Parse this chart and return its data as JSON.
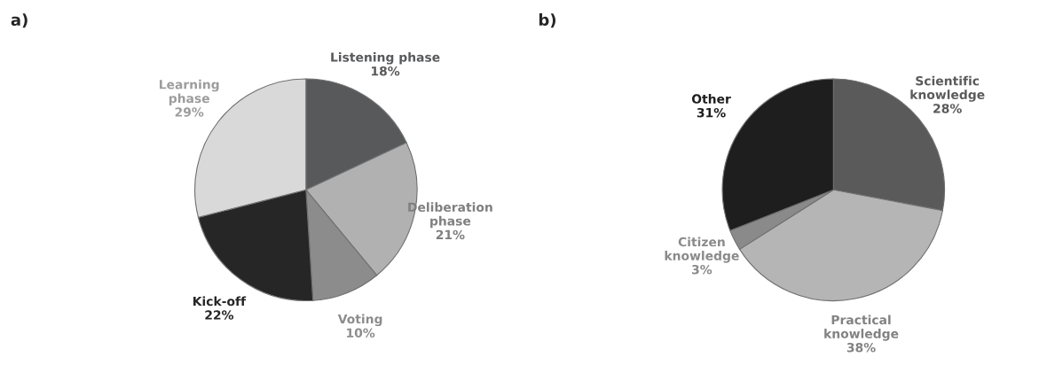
{
  "chart_data": [
    {
      "type": "pie",
      "title": "a)",
      "categories": [
        "Listening phase",
        "Deliberation\nphase",
        "Voting",
        "Kick-off",
        "Learning\nphase"
      ],
      "values": [
        18,
        21,
        10,
        22,
        29
      ],
      "value_labels": [
        "18%",
        "21%",
        "10%",
        "22%",
        "29%"
      ],
      "colors": [
        "#58595b",
        "#b1b1b1",
        "#8c8c8c",
        "#262626",
        "#d9d9d9"
      ]
    },
    {
      "type": "pie",
      "title": "b)",
      "categories": [
        "Scientific\nknowledge",
        "Practical\nknowledge",
        "Citizen\nknowledge",
        "Other"
      ],
      "values": [
        28,
        38,
        3,
        31
      ],
      "value_labels": [
        "28%",
        "38%",
        "3%",
        "31%"
      ],
      "colors": [
        "#5a5a5a",
        "#b5b5b5",
        "#8a8a8a",
        "#1e1e1e"
      ]
    }
  ]
}
